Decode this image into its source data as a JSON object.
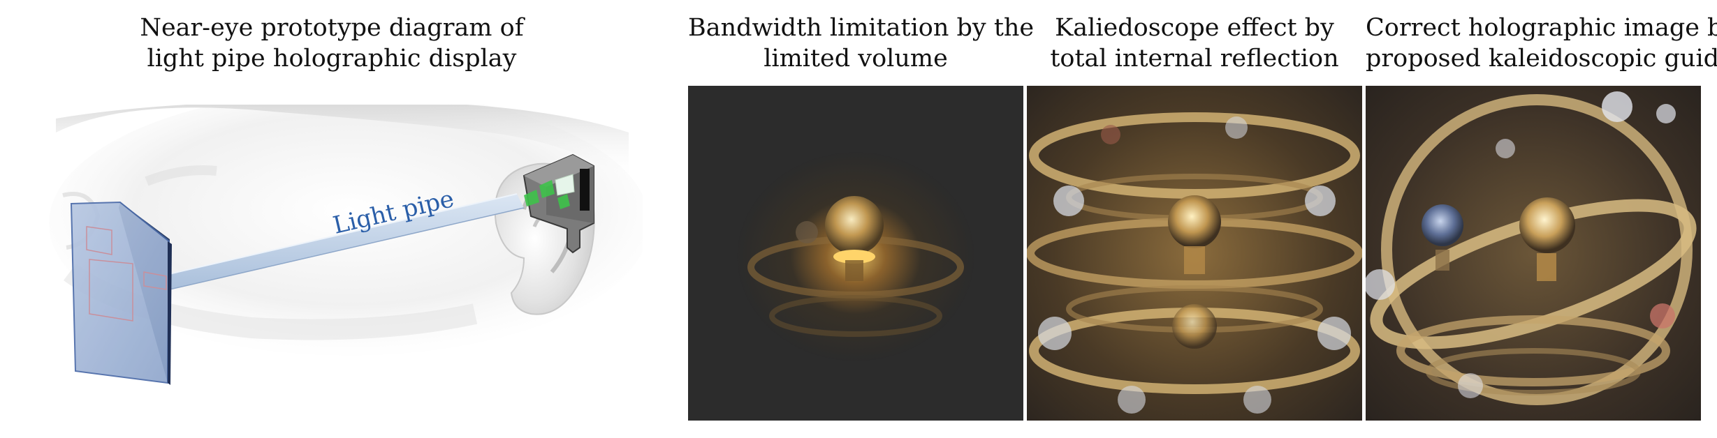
{
  "figure": {
    "diagram_caption_line1": "Near-eye prototype diagram of",
    "diagram_caption_line2": "light pipe holographic display",
    "diagram_label": "Light pipe",
    "panels": [
      {
        "caption_line1": "Bandwidth limitation by the",
        "caption_line2": "limited volume"
      },
      {
        "caption_line1": "Kaliedoscope effect by",
        "caption_line2": "total internal reflection"
      },
      {
        "caption_line1": "Correct holographic image by",
        "caption_line2": "proposed kaleidoscopic guiding"
      }
    ],
    "colors": {
      "light_pipe": "#b9cde4",
      "label_blue": "#2a5ea8",
      "screen_blue": "#9fb4d6",
      "component_green": "#3ec24a"
    }
  }
}
